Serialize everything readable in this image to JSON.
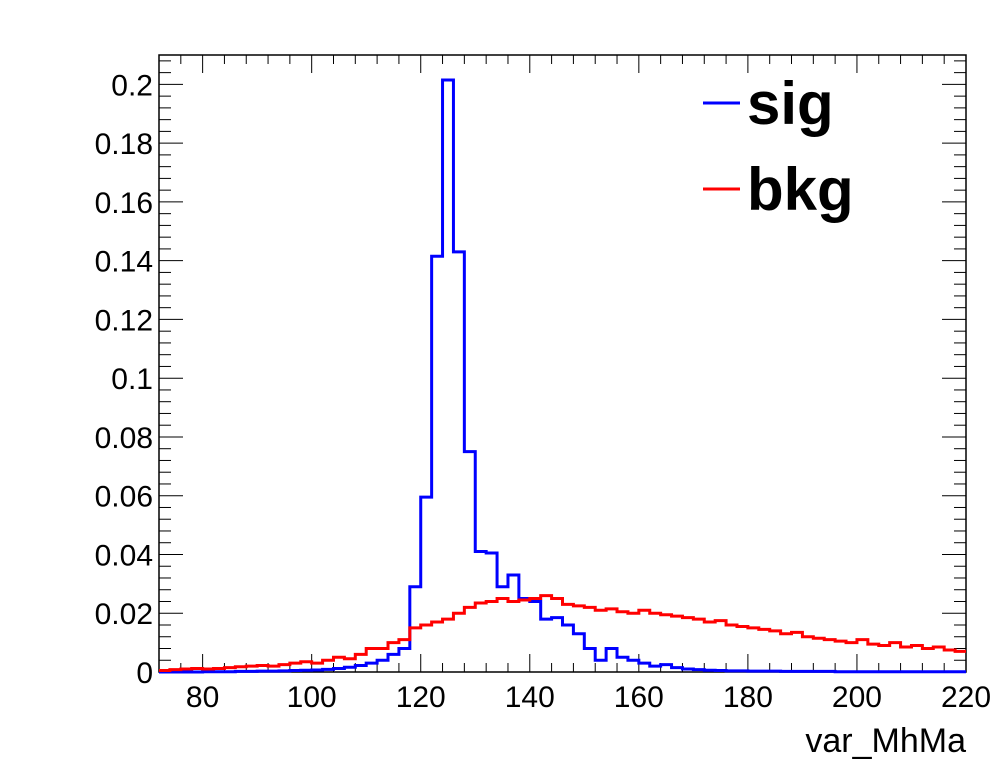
{
  "chart_data": {
    "type": "line",
    "xlabel": "var_MhMa",
    "ylabel": "",
    "xlim": [
      72,
      220
    ],
    "ylim": [
      0,
      0.21
    ],
    "x_ticks": [
      "80",
      "100",
      "120",
      "140",
      "160",
      "180",
      "200",
      "220"
    ],
    "y_ticks": [
      "0",
      "0.02",
      "0.04",
      "0.06",
      "0.08",
      "0.1",
      "0.12",
      "0.14",
      "0.16",
      "0.18",
      "0.2"
    ],
    "legend_position": "top-right",
    "grid": false,
    "bin_width": 2,
    "bin_edges_start": 72,
    "series": [
      {
        "name": "sig",
        "color": "#0000ff",
        "values": [
          0,
          0,
          0,
          0,
          0.0001,
          0.0001,
          0.0001,
          0.0002,
          0.0002,
          0.0003,
          0.0003,
          0.0004,
          0.0005,
          0.0006,
          0.0007,
          0.0009,
          0.0012,
          0.0016,
          0.0022,
          0.003,
          0.004,
          0.006,
          0.008,
          0.029,
          0.0595,
          0.1415,
          0.2015,
          0.143,
          0.075,
          0.041,
          0.0405,
          0.029,
          0.033,
          0.025,
          0.024,
          0.018,
          0.0185,
          0.016,
          0.013,
          0.008,
          0.004,
          0.008,
          0.005,
          0.004,
          0.003,
          0.002,
          0.0025,
          0.0015,
          0.001,
          0.0008,
          0.0006,
          0.0005,
          0.0004,
          0.0004,
          0.0003,
          0.0003,
          0.0003,
          0.0002,
          0.0002,
          0.0002,
          0.0002,
          0.0002,
          0.0001,
          0.0001,
          0.0001,
          0.0001,
          0.0001,
          0.0001,
          0.0001,
          0.0001,
          0.0001,
          0.0001,
          0.0001,
          0.0001
        ]
      },
      {
        "name": "bkg",
        "color": "#ff0000",
        "values": [
          0.0005,
          0.0008,
          0.001,
          0.0012,
          0.001,
          0.0012,
          0.0015,
          0.0018,
          0.002,
          0.0022,
          0.002,
          0.0025,
          0.003,
          0.0035,
          0.003,
          0.004,
          0.005,
          0.0045,
          0.006,
          0.008,
          0.008,
          0.01,
          0.011,
          0.015,
          0.016,
          0.017,
          0.018,
          0.02,
          0.022,
          0.0235,
          0.024,
          0.025,
          0.024,
          0.0245,
          0.025,
          0.026,
          0.025,
          0.023,
          0.0225,
          0.022,
          0.021,
          0.0215,
          0.0205,
          0.02,
          0.021,
          0.02,
          0.0195,
          0.019,
          0.0185,
          0.018,
          0.017,
          0.0175,
          0.016,
          0.0155,
          0.015,
          0.0145,
          0.014,
          0.013,
          0.0135,
          0.012,
          0.0115,
          0.011,
          0.0105,
          0.01,
          0.011,
          0.0095,
          0.009,
          0.01,
          0.0085,
          0.009,
          0.008,
          0.0085,
          0.0075,
          0.007
        ]
      }
    ]
  }
}
